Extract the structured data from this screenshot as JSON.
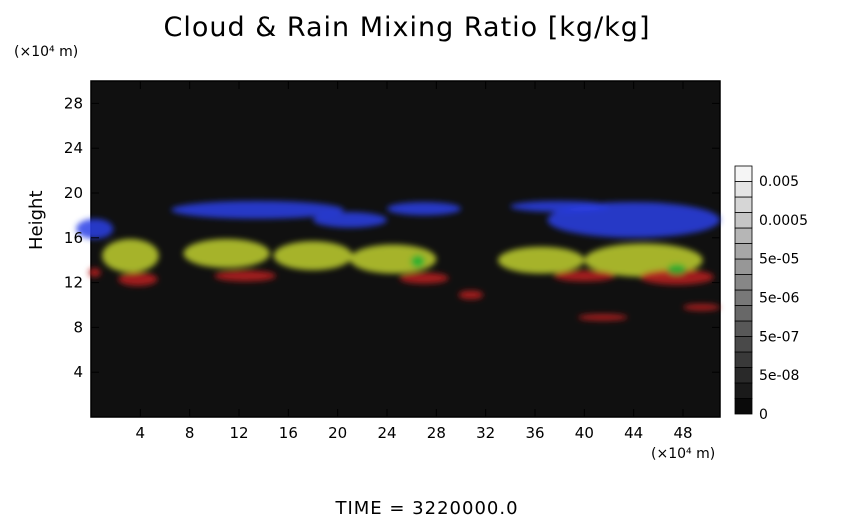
{
  "chart_data": {
    "type": "heatmap",
    "title": "Cloud & Rain Mixing Ratio [kg/kg]",
    "ylabel": "Height",
    "xlabel": "",
    "x_unit": "(×10⁴ m)",
    "y_unit": "(×10⁴ m)",
    "xlim": [
      0,
      51
    ],
    "ylim": [
      0,
      30
    ],
    "x_ticks": [
      4,
      8,
      12,
      16,
      20,
      24,
      28,
      32,
      36,
      40,
      44,
      48
    ],
    "y_ticks": [
      4,
      8,
      12,
      16,
      20,
      24,
      28
    ],
    "colorbar": {
      "labels": [
        "0.005",
        "0.0005",
        "5e-05",
        "5e-06",
        "5e-07",
        "5e-08",
        "0"
      ],
      "levels": 16
    },
    "regions": [
      {
        "color": "#2a3ee6",
        "x": 0.3,
        "y": 16.8,
        "rx": 1.5,
        "ry": 0.9
      },
      {
        "color": "#2a3ee6",
        "x": 13.5,
        "y": 18.5,
        "rx": 7,
        "ry": 0.8
      },
      {
        "color": "#2a3ee6",
        "x": 21,
        "y": 17.6,
        "rx": 3,
        "ry": 0.7
      },
      {
        "color": "#2a3ee6",
        "x": 27,
        "y": 18.6,
        "rx": 3,
        "ry": 0.6
      },
      {
        "color": "#2a3ee6",
        "x": 44,
        "y": 17.6,
        "rx": 7,
        "ry": 1.6
      },
      {
        "color": "#2a3ee6",
        "x": 38,
        "y": 18.8,
        "rx": 4,
        "ry": 0.5
      },
      {
        "color": "#c0d030",
        "x": 3.2,
        "y": 14.4,
        "rx": 2.3,
        "ry": 1.5
      },
      {
        "color": "#c0d030",
        "x": 11,
        "y": 14.6,
        "rx": 3.5,
        "ry": 1.3
      },
      {
        "color": "#c0d030",
        "x": 18,
        "y": 14.4,
        "rx": 3.2,
        "ry": 1.3
      },
      {
        "color": "#c0d030",
        "x": 24.5,
        "y": 14.1,
        "rx": 3.5,
        "ry": 1.3
      },
      {
        "color": "#c0d030",
        "x": 36.5,
        "y": 14.0,
        "rx": 3.5,
        "ry": 1.2
      },
      {
        "color": "#c0d030",
        "x": 44.8,
        "y": 14.0,
        "rx": 4.8,
        "ry": 1.5
      },
      {
        "color": "#b82020",
        "x": 0.3,
        "y": 12.9,
        "rx": 0.5,
        "ry": 0.4
      },
      {
        "color": "#b82020",
        "x": 3.8,
        "y": 12.3,
        "rx": 1.6,
        "ry": 0.6
      },
      {
        "color": "#b82020",
        "x": 12.5,
        "y": 12.6,
        "rx": 2.5,
        "ry": 0.5
      },
      {
        "color": "#b82020",
        "x": 27,
        "y": 12.4,
        "rx": 2,
        "ry": 0.5
      },
      {
        "color": "#b82020",
        "x": 30.8,
        "y": 10.9,
        "rx": 1,
        "ry": 0.4
      },
      {
        "color": "#b82020",
        "x": 40,
        "y": 12.6,
        "rx": 2.5,
        "ry": 0.5
      },
      {
        "color": "#b82020",
        "x": 47.5,
        "y": 12.5,
        "rx": 3,
        "ry": 0.7
      },
      {
        "color": "#b82020",
        "x": 41.5,
        "y": 8.9,
        "rx": 2,
        "ry": 0.3
      },
      {
        "color": "#b82020",
        "x": 49.5,
        "y": 9.8,
        "rx": 1.5,
        "ry": 0.3
      },
      {
        "color": "#22b030",
        "x": 26.5,
        "y": 13.9,
        "rx": 0.6,
        "ry": 0.6
      },
      {
        "color": "#22b030",
        "x": 47.5,
        "y": 13.2,
        "rx": 0.8,
        "ry": 0.5
      }
    ]
  },
  "footer": {
    "time_label": "TIME = 3220000.0"
  }
}
